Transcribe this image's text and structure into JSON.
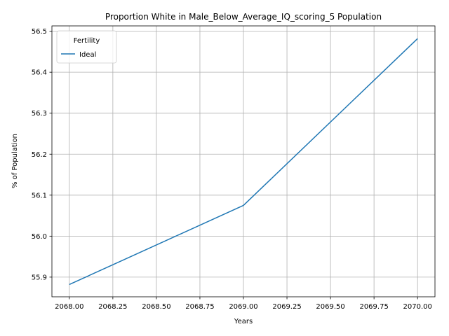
{
  "chart_data": {
    "type": "line",
    "title": "Proportion White in Male_Below_Average_IQ_scoring_5 Population",
    "xlabel": "Years",
    "ylabel": "% of Population",
    "x": [
      2068,
      2069,
      2070
    ],
    "series": [
      {
        "name": "Ideal",
        "values": [
          55.882,
          56.075,
          56.482
        ],
        "color": "#1f77b4"
      }
    ],
    "xlim": [
      2067.9,
      2070.1
    ],
    "ylim": [
      55.852,
      56.513
    ],
    "xticks": [
      "2068.00",
      "2068.25",
      "2068.50",
      "2068.75",
      "2069.00",
      "2069.25",
      "2069.50",
      "2069.75",
      "2070.00"
    ],
    "yticks": [
      "55.9",
      "56.0",
      "56.1",
      "56.2",
      "56.3",
      "56.4",
      "56.5"
    ],
    "grid": true,
    "legend": {
      "title": "Fertility",
      "placement": "top-left"
    }
  }
}
